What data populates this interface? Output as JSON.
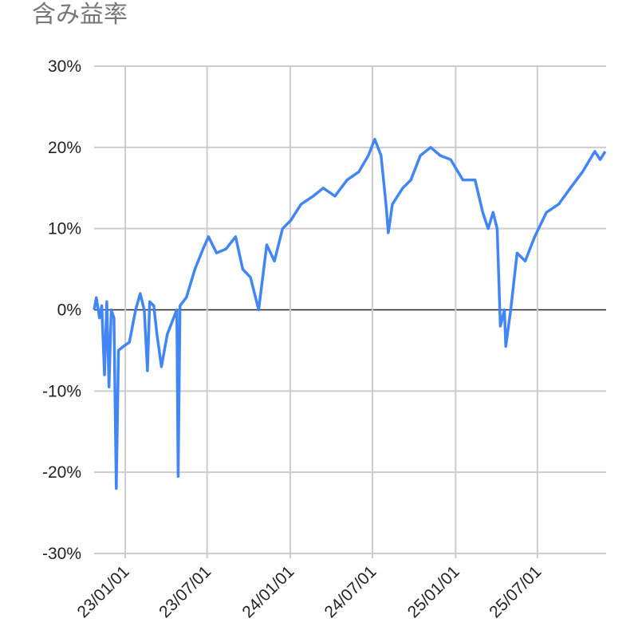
{
  "chart_data": {
    "type": "line",
    "title": "含み益率",
    "x": [
      "22/10/24",
      "22/10/29",
      "22/11/05",
      "22/11/10",
      "22/11/16",
      "22/11/21",
      "22/11/26",
      "22/12/01",
      "22/12/07",
      "22/12/12",
      "22/12/17",
      "22/12/28",
      "23/01/10",
      "23/01/24",
      "23/02/03",
      "23/02/12",
      "23/02/19",
      "23/02/24",
      "23/03/05",
      "23/03/12",
      "23/03/22",
      "23/04/04",
      "23/04/18",
      "23/04/25",
      "23/04/28",
      "23/05/02",
      "23/05/16",
      "23/06/04",
      "23/06/22",
      "23/07/04",
      "23/07/22",
      "23/08/12",
      "23/09/02",
      "23/09/18",
      "23/10/05",
      "23/10/23",
      "23/11/10",
      "23/11/27",
      "23/12/15",
      "24/01/02",
      "24/01/25",
      "24/02/21",
      "24/03/14",
      "24/04/09",
      "24/05/06",
      "24/06/01",
      "24/06/22",
      "24/07/06",
      "24/07/20",
      "24/07/31",
      "24/08/05",
      "24/08/14",
      "24/09/06",
      "24/09/24",
      "24/10/15",
      "24/11/07",
      "24/11/28",
      "24/12/21",
      "25/01/17",
      "25/02/13",
      "25/03/02",
      "25/03/14",
      "25/03/25",
      "25/04/03",
      "25/04/10",
      "25/04/19",
      "25/04/22",
      "25/05/03",
      "25/05/17",
      "25/06/04",
      "25/06/25",
      "25/07/21",
      "25/08/17",
      "25/09/12",
      "25/10/09",
      "25/11/05",
      "25/11/17",
      "25/11/28"
    ],
    "series": [
      {
        "color": "#4285f4",
        "values": [
          0,
          1.5,
          -1,
          0.5,
          -8,
          1,
          -9.5,
          0,
          -1,
          -22,
          -5,
          -4.5,
          -4,
          0,
          2,
          0,
          -7.5,
          1,
          0.5,
          -3,
          -7,
          -3,
          -1,
          0,
          -20.5,
          0.5,
          1.5,
          5,
          7.5,
          9,
          7,
          7.5,
          9,
          5,
          4,
          0,
          8,
          6,
          10,
          11,
          13,
          14,
          15,
          14,
          16,
          17,
          19,
          21,
          19,
          13,
          9.5,
          13,
          15,
          16,
          19,
          20,
          19,
          18.5,
          16,
          16,
          12,
          10,
          12,
          10,
          -2,
          0,
          -4.5,
          0,
          7,
          6,
          9,
          12,
          13,
          15,
          17,
          19.5,
          18.5,
          19.5
        ]
      }
    ],
    "xlim": [
      "22/10/24",
      "25/11/30"
    ],
    "xticks": [
      "23/01/01",
      "23/07/01",
      "24/01/01",
      "24/07/01",
      "25/01/01",
      "25/07/01"
    ],
    "ylim": [
      -30,
      30
    ],
    "yticks": [
      {
        "value": -30,
        "label": "-30%"
      },
      {
        "value": -20,
        "label": "-20%"
      },
      {
        "value": -10,
        "label": "-10%"
      },
      {
        "value": 0,
        "label": "0%"
      },
      {
        "value": 10,
        "label": "10%"
      },
      {
        "value": 20,
        "label": "20%"
      },
      {
        "value": 30,
        "label": "30%"
      }
    ],
    "grid": true
  }
}
